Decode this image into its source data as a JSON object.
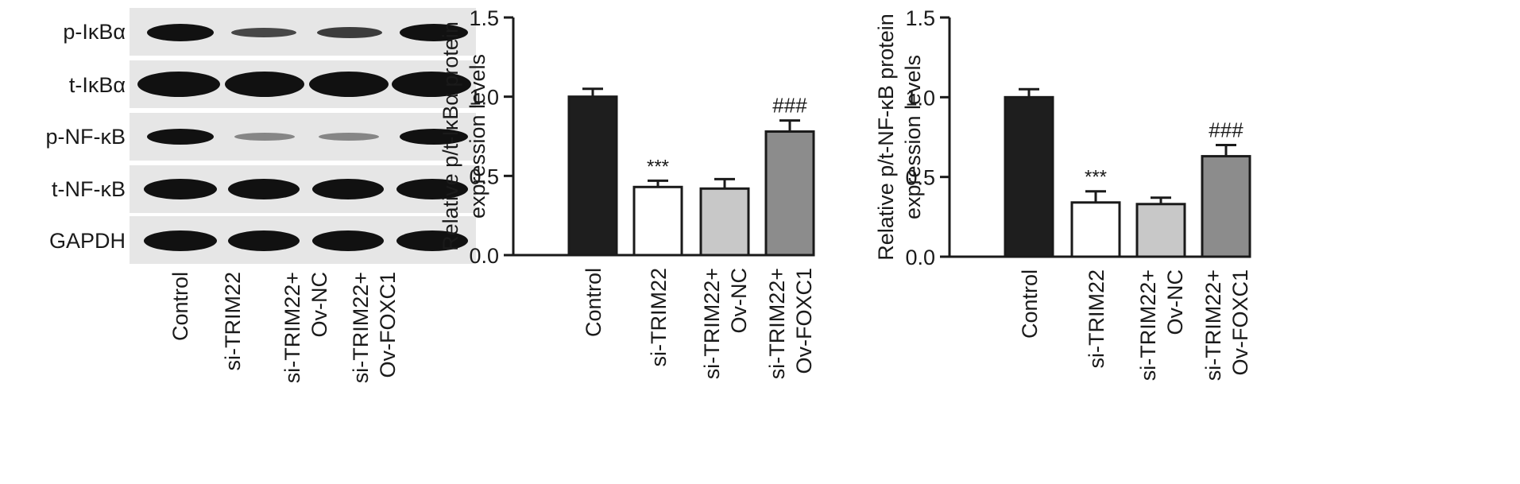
{
  "western_blot": {
    "row_labels": [
      "p-IκBα",
      "t-IκBα",
      "p-NF-κB",
      "t-NF-κB",
      "GAPDH"
    ],
    "lanes": [
      [
        "Control"
      ],
      [
        "si-TRIM22"
      ],
      [
        "si-TRIM22+",
        "Ov-NC"
      ],
      [
        "si-TRIM22+",
        "Ov-FOXC1"
      ]
    ]
  },
  "chart_data": [
    {
      "type": "bar",
      "categories": [
        [
          "Control"
        ],
        [
          "si-TRIM22"
        ],
        [
          "si-TRIM22+",
          "Ov-NC"
        ],
        [
          "si-TRIM22+",
          "Ov-FOXC1"
        ]
      ],
      "values": [
        1.0,
        0.43,
        0.42,
        0.78
      ],
      "errors": [
        0.05,
        0.04,
        0.06,
        0.07
      ],
      "annotations": [
        "",
        "***",
        "",
        "###"
      ],
      "bar_colors": [
        "#1e1e1e",
        "#ffffff",
        "#c8c8c8",
        "#8c8c8c"
      ],
      "ylabel": [
        "Relative p/t-IκBα protein",
        "expression levels"
      ],
      "ylim": [
        0,
        1.5
      ],
      "yticks": [
        "0.0",
        "0.5",
        "1.0",
        "1.5"
      ],
      "title": "",
      "xlabel": ""
    },
    {
      "type": "bar",
      "categories": [
        [
          "Control"
        ],
        [
          "si-TRIM22"
        ],
        [
          "si-TRIM22+",
          "Ov-NC"
        ],
        [
          "si-TRIM22+",
          "Ov-FOXC1"
        ]
      ],
      "values": [
        1.0,
        0.34,
        0.33,
        0.63
      ],
      "errors": [
        0.05,
        0.07,
        0.04,
        0.07
      ],
      "annotations": [
        "",
        "***",
        "",
        "###"
      ],
      "bar_colors": [
        "#1e1e1e",
        "#ffffff",
        "#c8c8c8",
        "#8c8c8c"
      ],
      "ylabel": [
        "Relative p/t-NF-κB protein",
        "expression levels"
      ],
      "ylim": [
        0,
        1.5
      ],
      "yticks": [
        "0.0",
        "0.5",
        "1.0",
        "1.5"
      ],
      "title": "",
      "xlabel": ""
    }
  ]
}
